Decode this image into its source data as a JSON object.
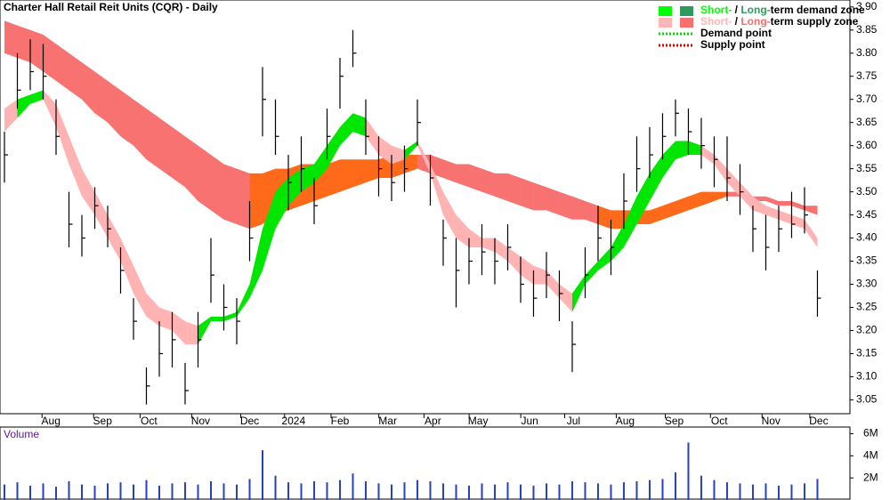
{
  "chart_data": {
    "type": "ohlc",
    "title": "Charter Hall Retail Reit Units (CQR) - Daily",
    "xlim": [
      -0.345,
      65.52
    ],
    "ylim": [
      3.02,
      3.915
    ],
    "xticks": [
      {
        "value": 3.6,
        "label": "Aug"
      },
      {
        "value": 7.6,
        "label": "Sep"
      },
      {
        "value": 11.2,
        "label": "Oct"
      },
      {
        "value": 15.2,
        "label": "Nov"
      },
      {
        "value": 19.0,
        "label": "Dec"
      },
      {
        "value": 22.4,
        "label": "2024"
      },
      {
        "value": 26.0,
        "label": "Feb"
      },
      {
        "value": 29.7,
        "label": "Mar"
      },
      {
        "value": 33.2,
        "label": "Apr"
      },
      {
        "value": 36.7,
        "label": "May"
      },
      {
        "value": 40.7,
        "label": "Jun"
      },
      {
        "value": 44.1,
        "label": "Jul"
      },
      {
        "value": 48.1,
        "label": "Aug"
      },
      {
        "value": 51.9,
        "label": "Sep"
      },
      {
        "value": 55.4,
        "label": "Oct"
      },
      {
        "value": 59.4,
        "label": "Nov"
      },
      {
        "value": 63.1,
        "label": "Dec"
      }
    ],
    "yticks": [
      {
        "value": 3.05,
        "label": "3.05"
      },
      {
        "value": 3.1,
        "label": "3.10"
      },
      {
        "value": 3.15,
        "label": "3.15"
      },
      {
        "value": 3.2,
        "label": "3.20"
      },
      {
        "value": 3.25,
        "label": "3.25"
      },
      {
        "value": 3.3,
        "label": "3.30"
      },
      {
        "value": 3.35,
        "label": "3.35"
      },
      {
        "value": 3.4,
        "label": "3.40"
      },
      {
        "value": 3.45,
        "label": "3.45"
      },
      {
        "value": 3.5,
        "label": "3.50"
      },
      {
        "value": 3.55,
        "label": "3.55"
      },
      {
        "value": 3.6,
        "label": "3.60"
      },
      {
        "value": 3.65,
        "label": "3.65"
      },
      {
        "value": 3.7,
        "label": "3.70"
      },
      {
        "value": 3.75,
        "label": "3.75"
      },
      {
        "value": 3.8,
        "label": "3.80"
      },
      {
        "value": 3.85,
        "label": "3.85"
      },
      {
        "value": 3.9,
        "label": "3.90"
      }
    ],
    "bar_color": "#000000",
    "high": [
      3.63,
      3.8,
      3.83,
      3.82,
      3.7,
      3.5,
      3.45,
      3.51,
      3.47,
      3.38,
      3.27,
      3.12,
      3.22,
      3.24,
      3.13,
      3.24,
      3.4,
      3.3,
      3.27,
      3.48,
      3.77,
      3.7,
      3.58,
      3.62,
      3.53,
      3.68,
      3.79,
      3.85,
      3.7,
      3.62,
      3.58,
      3.6,
      3.7,
      3.58,
      3.44,
      3.4,
      3.4,
      3.43,
      3.4,
      3.43,
      3.36,
      3.33,
      3.37,
      3.33,
      3.22,
      3.38,
      3.47,
      3.44,
      3.54,
      3.62,
      3.64,
      3.67,
      3.7,
      3.68,
      3.66,
      3.62,
      3.62,
      3.56,
      3.47,
      3.45,
      3.47,
      3.5,
      3.51,
      3.33
    ],
    "low": [
      3.52,
      3.68,
      3.72,
      3.7,
      3.58,
      3.38,
      3.36,
      3.42,
      3.38,
      3.28,
      3.18,
      3.04,
      3.1,
      3.12,
      3.04,
      3.12,
      3.26,
      3.2,
      3.17,
      3.35,
      3.62,
      3.58,
      3.46,
      3.5,
      3.43,
      3.57,
      3.68,
      3.77,
      3.58,
      3.49,
      3.48,
      3.5,
      3.6,
      3.47,
      3.34,
      3.25,
      3.3,
      3.32,
      3.3,
      3.33,
      3.26,
      3.23,
      3.27,
      3.22,
      3.11,
      3.27,
      3.35,
      3.32,
      3.42,
      3.5,
      3.53,
      3.57,
      3.62,
      3.58,
      3.55,
      3.51,
      3.48,
      3.45,
      3.37,
      3.33,
      3.37,
      3.4,
      3.41,
      3.23
    ],
    "close": [
      3.58,
      3.72,
      3.76,
      3.75,
      3.62,
      3.43,
      3.4,
      3.47,
      3.42,
      3.33,
      3.22,
      3.08,
      3.15,
      3.18,
      3.07,
      3.18,
      3.32,
      3.25,
      3.22,
      3.4,
      3.7,
      3.62,
      3.52,
      3.55,
      3.47,
      3.62,
      3.75,
      3.8,
      3.62,
      3.55,
      3.52,
      3.55,
      3.65,
      3.53,
      3.4,
      3.33,
      3.35,
      3.37,
      3.35,
      3.38,
      3.3,
      3.27,
      3.32,
      3.28,
      3.17,
      3.32,
      3.4,
      3.38,
      3.48,
      3.55,
      3.58,
      3.62,
      3.67,
      3.63,
      3.6,
      3.57,
      3.53,
      3.5,
      3.42,
      3.38,
      3.42,
      3.43,
      3.45,
      3.27
    ],
    "long_term_zone": {
      "supply_color": "#f87272",
      "demand_color": "#ff6a1a",
      "upper": [
        3.87,
        3.86,
        3.85,
        3.84,
        3.82,
        3.8,
        3.78,
        3.76,
        3.74,
        3.72,
        3.7,
        3.68,
        3.66,
        3.64,
        3.62,
        3.6,
        3.58,
        3.56,
        3.55,
        3.54,
        3.54,
        3.55,
        3.55,
        3.56,
        3.56,
        3.56,
        3.57,
        3.57,
        3.57,
        3.57,
        3.58,
        3.58,
        3.58,
        3.58,
        3.57,
        3.56,
        3.56,
        3.55,
        3.54,
        3.54,
        3.53,
        3.52,
        3.51,
        3.5,
        3.49,
        3.48,
        3.47,
        3.46,
        3.46,
        3.46,
        3.46,
        3.47,
        3.48,
        3.49,
        3.5,
        3.5,
        3.5,
        3.5,
        3.49,
        3.49,
        3.48,
        3.48,
        3.47,
        3.47
      ],
      "lower": [
        3.8,
        3.79,
        3.78,
        3.76,
        3.74,
        3.72,
        3.7,
        3.67,
        3.65,
        3.62,
        3.6,
        3.57,
        3.55,
        3.53,
        3.51,
        3.48,
        3.46,
        3.44,
        3.43,
        3.42,
        3.43,
        3.45,
        3.46,
        3.47,
        3.48,
        3.49,
        3.5,
        3.51,
        3.52,
        3.53,
        3.53,
        3.54,
        3.55,
        3.54,
        3.53,
        3.52,
        3.51,
        3.5,
        3.49,
        3.48,
        3.47,
        3.46,
        3.46,
        3.45,
        3.44,
        3.44,
        3.43,
        3.42,
        3.42,
        3.43,
        3.43,
        3.44,
        3.45,
        3.46,
        3.47,
        3.48,
        3.49,
        3.49,
        3.48,
        3.48,
        3.47,
        3.47,
        3.46,
        3.45
      ],
      "demand": [
        0,
        0,
        0,
        0,
        0,
        0,
        0,
        0,
        0,
        0,
        0,
        0,
        0,
        0,
        0,
        0,
        0,
        0,
        0,
        0,
        1,
        1,
        1,
        1,
        1,
        1,
        1,
        1,
        1,
        1,
        1,
        1,
        1,
        0,
        0,
        0,
        0,
        0,
        0,
        0,
        0,
        0,
        0,
        0,
        0,
        0,
        0,
        1,
        1,
        1,
        1,
        1,
        1,
        1,
        1,
        1,
        1,
        0,
        0,
        0,
        0,
        0,
        0,
        0
      ]
    },
    "short_term_zone": {
      "supply_color": "#ffb3b3",
      "demand_color": "#00e600",
      "upper": [
        3.68,
        3.7,
        3.71,
        3.72,
        3.69,
        3.62,
        3.55,
        3.5,
        3.45,
        3.4,
        3.34,
        3.28,
        3.25,
        3.24,
        3.22,
        3.21,
        3.23,
        3.23,
        3.24,
        3.3,
        3.42,
        3.5,
        3.53,
        3.55,
        3.56,
        3.6,
        3.64,
        3.67,
        3.66,
        3.62,
        3.6,
        3.59,
        3.61,
        3.56,
        3.5,
        3.45,
        3.42,
        3.4,
        3.4,
        3.38,
        3.36,
        3.34,
        3.33,
        3.3,
        3.28,
        3.32,
        3.35,
        3.38,
        3.43,
        3.49,
        3.54,
        3.58,
        3.61,
        3.61,
        3.6,
        3.58,
        3.55,
        3.52,
        3.49,
        3.47,
        3.46,
        3.45,
        3.44,
        3.4
      ],
      "lower": [
        3.63,
        3.66,
        3.69,
        3.7,
        3.64,
        3.56,
        3.49,
        3.45,
        3.4,
        3.35,
        3.28,
        3.23,
        3.21,
        3.2,
        3.17,
        3.17,
        3.22,
        3.22,
        3.23,
        3.27,
        3.33,
        3.42,
        3.47,
        3.5,
        3.52,
        3.55,
        3.6,
        3.63,
        3.62,
        3.58,
        3.56,
        3.57,
        3.6,
        3.54,
        3.45,
        3.4,
        3.38,
        3.38,
        3.37,
        3.35,
        3.32,
        3.3,
        3.3,
        3.27,
        3.24,
        3.3,
        3.33,
        3.35,
        3.38,
        3.43,
        3.48,
        3.53,
        3.57,
        3.58,
        3.58,
        3.56,
        3.52,
        3.49,
        3.46,
        3.45,
        3.44,
        3.43,
        3.42,
        3.38
      ],
      "demand": [
        0,
        0,
        1,
        1,
        0,
        0,
        0,
        0,
        0,
        0,
        0,
        0,
        0,
        0,
        0,
        0,
        1,
        1,
        1,
        1,
        1,
        1,
        1,
        1,
        1,
        1,
        1,
        1,
        1,
        0,
        0,
        0,
        1,
        0,
        0,
        0,
        0,
        0,
        0,
        0,
        0,
        0,
        0,
        0,
        0,
        1,
        1,
        1,
        1,
        1,
        1,
        1,
        1,
        1,
        1,
        0,
        0,
        0,
        0,
        0,
        0,
        0,
        0,
        0
      ]
    },
    "legend": [
      {
        "parts": [
          "Short-",
          " / ",
          "Long-",
          "term demand zone"
        ],
        "colors": [
          "#00ff00",
          "#2e9a5e"
        ]
      },
      {
        "parts": [
          "Short-",
          " / ",
          "Long-",
          "term supply zone"
        ],
        "colors": [
          "#ffb6b6",
          "#f76f6f"
        ]
      },
      {
        "parts": [
          "Demand point"
        ],
        "colors": [
          "#00dd00"
        ]
      },
      {
        "parts": [
          "Supply point"
        ],
        "colors": [
          "#dd0000"
        ]
      }
    ],
    "volume": {
      "label": "Volume",
      "color": "#2a3fbf",
      "ylim": [
        0,
        6600000
      ],
      "yticks": [
        {
          "value": 2000000,
          "label": "2M"
        },
        {
          "value": 4000000,
          "label": "4M"
        },
        {
          "value": 6000000,
          "label": "6M"
        }
      ],
      "values": [
        1400000,
        1600000,
        1300000,
        1500000,
        1200000,
        1700000,
        1400000,
        1300000,
        1500000,
        1600000,
        1400000,
        1800000,
        1300000,
        1500000,
        1600000,
        1400000,
        1700000,
        1500000,
        1400000,
        1900000,
        4500000,
        2200000,
        1600000,
        1500000,
        1700000,
        1600000,
        1800000,
        2400000,
        1700000,
        1500000,
        1400000,
        1600000,
        1800000,
        1700000,
        1500000,
        1400000,
        1300000,
        1500000,
        1400000,
        1600000,
        1400000,
        1300000,
        1500000,
        1400000,
        1700000,
        1600000,
        1500000,
        1400000,
        1600000,
        1700000,
        1800000,
        1900000,
        2500000,
        5200000,
        2200000,
        1800000,
        1600000,
        1500000,
        1400000,
        1500000,
        1300000,
        1400000,
        1500000,
        1900000
      ]
    }
  }
}
